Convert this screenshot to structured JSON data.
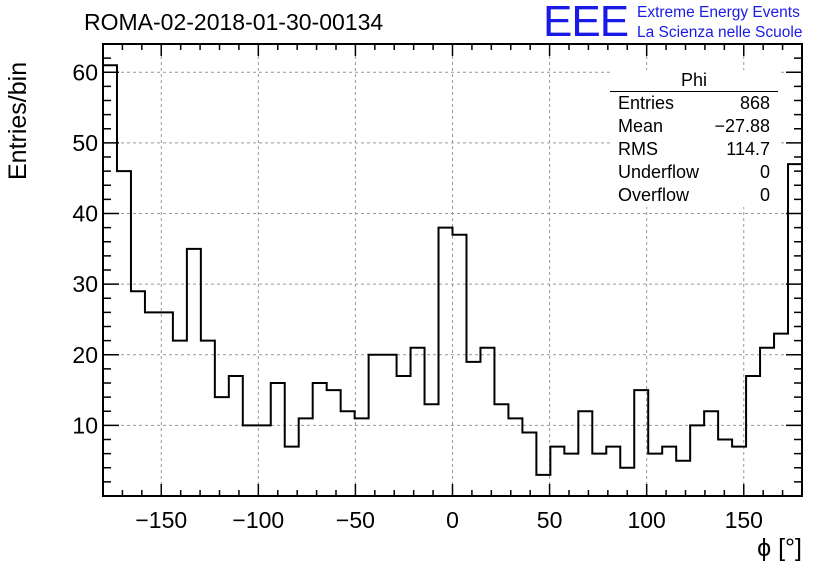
{
  "chart_data": {
    "type": "histogram",
    "title": "ROMA-02-2018-01-30-00134",
    "xlabel": "ϕ [°]",
    "ylabel": "Entries/bin",
    "xlim": [
      -180,
      180
    ],
    "ylim": [
      0,
      64
    ],
    "bin_width": 7.2,
    "grid": true,
    "x_ticks": [
      -150,
      -100,
      -50,
      0,
      50,
      100,
      150
    ],
    "x_tick_labels": [
      "−150",
      "−100",
      "−50",
      "0",
      "50",
      "100",
      "150"
    ],
    "y_ticks": [
      10,
      20,
      30,
      40,
      50,
      60
    ],
    "y_tick_labels": [
      "10",
      "20",
      "30",
      "40",
      "50",
      "60"
    ],
    "values": [
      61,
      46,
      29,
      26,
      26,
      22,
      35,
      22,
      14,
      17,
      10,
      10,
      16,
      7,
      11,
      16,
      15,
      12,
      11,
      20,
      20,
      17,
      21,
      13,
      38,
      37,
      19,
      21,
      13,
      11,
      9,
      3,
      7,
      6,
      12,
      6,
      7,
      4,
      15,
      6,
      7,
      5,
      10,
      12,
      8,
      7,
      17,
      21,
      23,
      47
    ],
    "stats": {
      "header": "Phi",
      "rows": [
        {
          "label": "Entries",
          "value": "868"
        },
        {
          "label": "Mean",
          "value": "−27.88"
        },
        {
          "label": "RMS",
          "value": "114.7"
        },
        {
          "label": "Underflow",
          "value": "0"
        },
        {
          "label": "Overflow",
          "value": "0"
        }
      ]
    }
  },
  "logo": {
    "mark": "EEE",
    "line1": "Extreme Energy Events",
    "line2": "La Scienza nelle Scuole",
    "color": "#1a1ae6"
  }
}
